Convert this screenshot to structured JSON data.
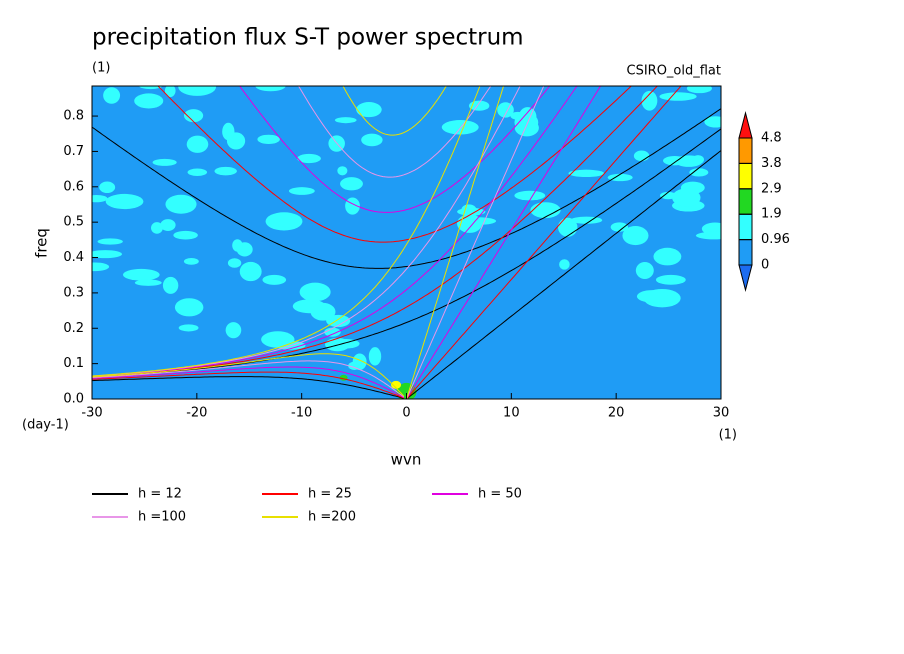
{
  "chart_data": {
    "type": "contour",
    "title": "precipitation flux S-T power spectrum",
    "subtitle": "(1)",
    "dataset_label": "CSIRO_old_flat",
    "x_label": "wvn",
    "y_label": "freq",
    "x_units": "(1)",
    "y_units": "(day-1)",
    "xlim": [
      -30,
      30
    ],
    "ylim": [
      0,
      0.885
    ],
    "xticks": [
      -30,
      -20,
      -10,
      0,
      10,
      20,
      30
    ],
    "yticks": [
      0.0,
      0.1,
      0.2,
      0.3,
      0.4,
      0.5,
      0.6,
      0.7,
      0.8
    ],
    "ytick_labels": [
      "0.0",
      "0.1",
      "0.2",
      "0.3",
      "0.4",
      "0.5",
      "0.6",
      "0.7",
      "0.8"
    ],
    "levels": [
      0,
      0.96,
      1.9,
      2.9,
      3.8,
      4.8
    ],
    "level_colors": [
      "#1c6cf0",
      "#1f9cf5",
      "#33ffff",
      "#22d822",
      "#ffff00",
      "#ff9900",
      "#ff1010"
    ],
    "series": [
      {
        "name": "h = 12",
        "h": 12,
        "color": "#000000"
      },
      {
        "name": "h = 25",
        "h": 25,
        "color": "#ff0000"
      },
      {
        "name": "h = 50",
        "h": 50,
        "color": "#e000e0"
      },
      {
        "name": "h =100",
        "h": 100,
        "color": "#e896e8"
      },
      {
        "name": "h =200",
        "h": 200,
        "color": "#e8e000"
      }
    ]
  }
}
